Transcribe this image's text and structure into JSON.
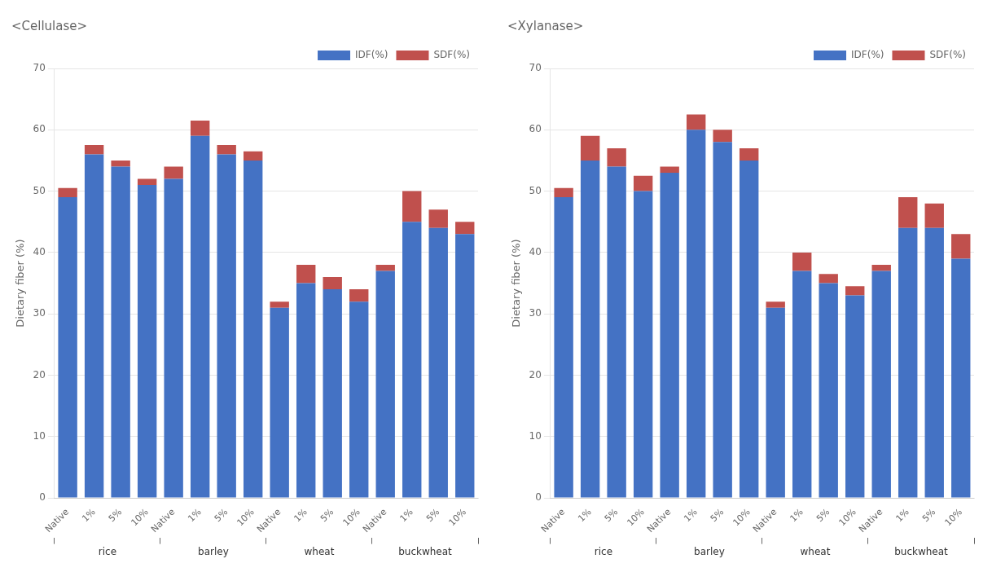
{
  "chart_data": [
    {
      "type": "bar",
      "title": "<Cellulase>",
      "ylabel": "Dietary fiber (%)",
      "categories": [
        "Native",
        "1%",
        "5%",
        "10%",
        "Native",
        "1%",
        "5%",
        "10%",
        "Native",
        "1%",
        "5%",
        "10%",
        "Native",
        "1%",
        "5%",
        "10%"
      ],
      "group_labels": [
        "rice",
        "barley",
        "wheat",
        "buckwheat"
      ],
      "series": [
        {
          "name": "IDF(%)",
          "color": "#4472C4",
          "values": [
            49.0,
            56.0,
            54.0,
            51.0,
            52.0,
            59.0,
            56.0,
            55.0,
            31.0,
            35.0,
            34.0,
            32.0,
            37.0,
            45.0,
            44.0,
            43.0
          ]
        },
        {
          "name": "SDF(%)",
          "color": "#C0504D",
          "values": [
            1.5,
            1.5,
            1.0,
            1.0,
            2.0,
            2.5,
            1.5,
            1.5,
            1.0,
            3.0,
            2.0,
            2.0,
            1.0,
            5.0,
            3.0,
            2.0
          ]
        }
      ],
      "stacked": true,
      "ylim": [
        0,
        70
      ],
      "yticks": [
        0,
        10,
        20,
        30,
        40,
        50,
        60,
        70
      ],
      "grid": true,
      "legend": "upper right"
    },
    {
      "type": "bar",
      "title": "<Xylanase>",
      "ylabel": "Dietary fiber (%)",
      "categories": [
        "Native",
        "1%",
        "5%",
        "10%",
        "Native",
        "1%",
        "5%",
        "10%",
        "Native",
        "1%",
        "5%",
        "10%",
        "Native",
        "1%",
        "5%",
        "10%"
      ],
      "group_labels": [
        "rice",
        "barley",
        "wheat",
        "buckwheat"
      ],
      "series": [
        {
          "name": "IDF(%)",
          "color": "#4472C4",
          "values": [
            49.0,
            55.0,
            54.0,
            50.0,
            53.0,
            60.0,
            58.0,
            55.0,
            31.0,
            37.0,
            35.0,
            33.0,
            37.0,
            44.0,
            44.0,
            39.0
          ]
        },
        {
          "name": "SDF(%)",
          "color": "#C0504D",
          "values": [
            1.5,
            4.0,
            3.0,
            2.5,
            1.0,
            2.5,
            2.0,
            2.0,
            1.0,
            3.0,
            1.5,
            1.5,
            1.0,
            5.0,
            4.0,
            4.0
          ]
        }
      ],
      "stacked": true,
      "ylim": [
        0,
        70
      ],
      "yticks": [
        0,
        10,
        20,
        30,
        40,
        50,
        60,
        70
      ],
      "grid": true,
      "legend": "upper right"
    }
  ]
}
